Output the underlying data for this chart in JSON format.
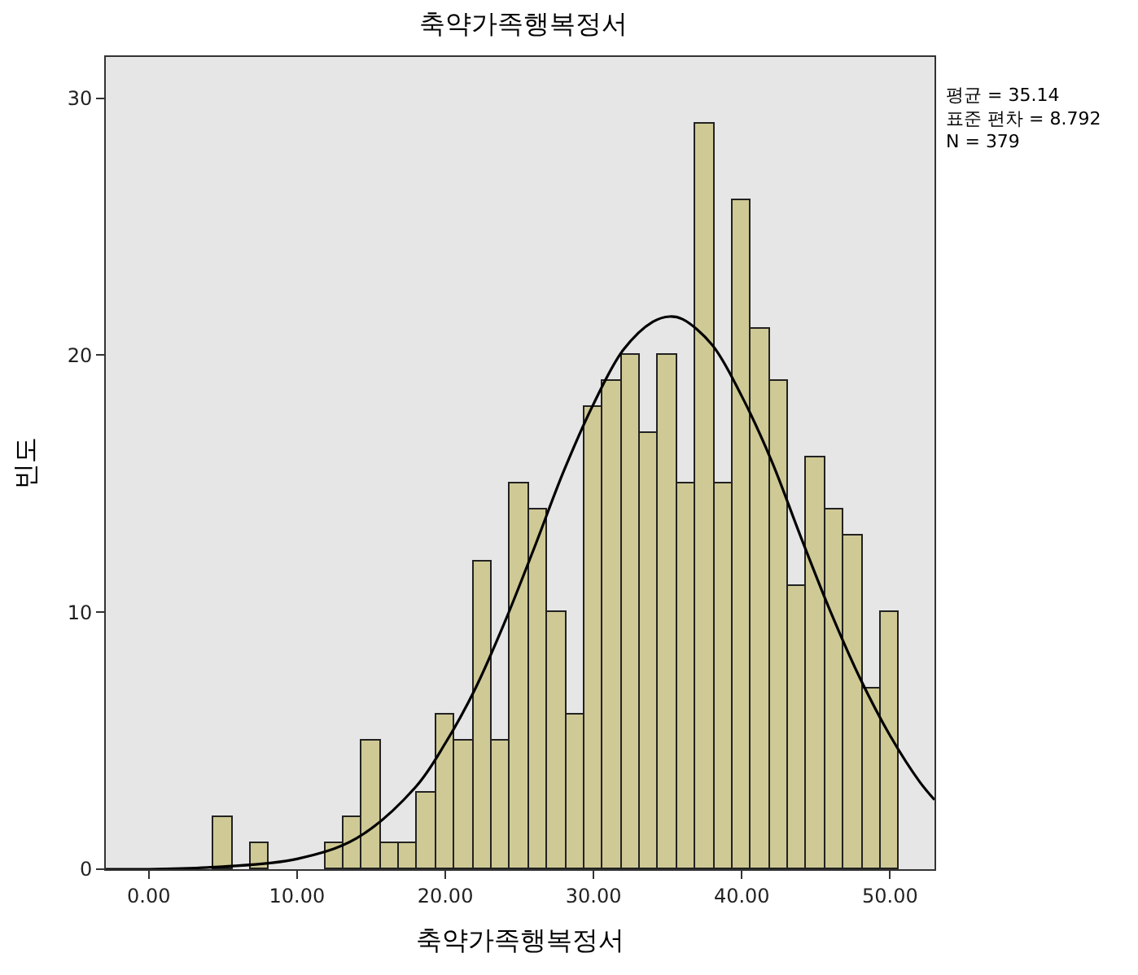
{
  "chart_data": {
    "type": "histogram",
    "title": "축약가족행복정서",
    "xlabel": "축약가족행복정서",
    "ylabel": "빈도",
    "bins": [
      4.375,
      5.625,
      6.875,
      8.125,
      9.375,
      10.625,
      11.875,
      13.125,
      14.375,
      15.625,
      16.875,
      18.125,
      19.375,
      20.625,
      21.875,
      23.125,
      24.375,
      25.625,
      26.875,
      28.125,
      29.375,
      30.625,
      31.875,
      33.125,
      34.375,
      35.625,
      36.875,
      38.125,
      39.375,
      40.625,
      41.875,
      43.125,
      44.375,
      45.625,
      46.875,
      48.125,
      49.375,
      50.625
    ],
    "values": [
      2,
      0,
      1,
      0,
      0,
      0,
      1,
      2,
      5,
      1,
      1,
      3,
      6,
      5,
      12,
      5,
      15,
      14,
      10,
      6,
      18,
      19,
      20,
      17,
      20,
      15,
      29,
      15,
      26,
      21,
      19,
      11,
      16,
      14,
      13,
      7,
      10
    ],
    "color": "#cfc995",
    "series": [
      {
        "type": "line",
        "color": "#000000",
        "x": [
          -2.9,
          0,
          5,
          10,
          14,
          18,
          20,
          22,
          24,
          26,
          28,
          30,
          32,
          34,
          35.14,
          36,
          38,
          40,
          42,
          44,
          46,
          48,
          50,
          52,
          53
        ],
        "values": [
          0,
          0,
          0.1,
          0.4,
          1.2,
          3.2,
          4.9,
          7.0,
          9.6,
          12.5,
          15.5,
          18.1,
          20.2,
          21.3,
          21.5,
          21.4,
          20.4,
          18.4,
          15.9,
          12.9,
          10.0,
          7.4,
          5.2,
          3.4,
          2.7
        ]
      }
    ],
    "xlim": [
      -2.9,
      53
    ],
    "ylim": [
      0,
      31.6
    ],
    "xticks": [
      {
        "value": 0,
        "label": "0.00"
      },
      {
        "value": 10,
        "label": "10.00"
      },
      {
        "value": 20,
        "label": "20.00"
      },
      {
        "value": 30,
        "label": "30.00"
      },
      {
        "value": 40,
        "label": "40.00"
      },
      {
        "value": 50,
        "label": "50.00"
      }
    ],
    "yticks": [
      0,
      10,
      20,
      30
    ],
    "grid": false,
    "marker": "none",
    "line_style": "solid",
    "annotations": [
      "평균 = 35.14\n표준 편차 = 8.792\nN = 379"
    ]
  }
}
